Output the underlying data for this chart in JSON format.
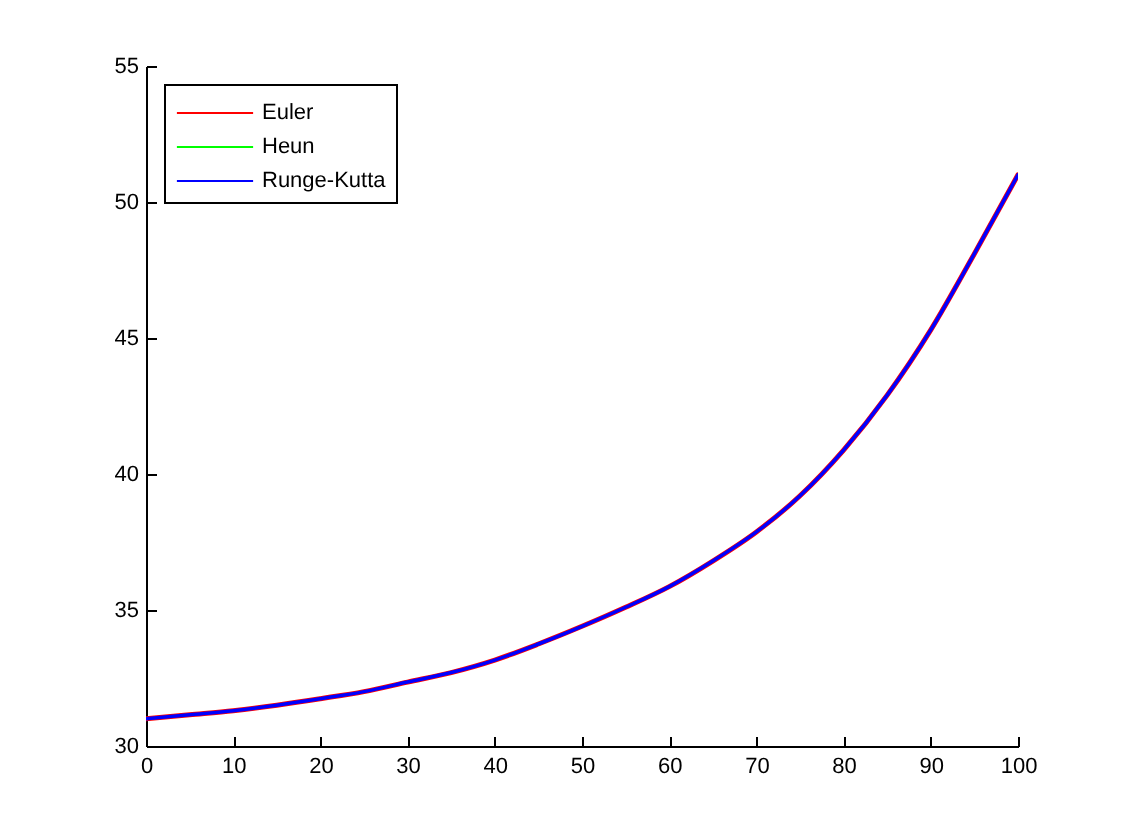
{
  "chart_data": {
    "type": "line",
    "x": [
      0,
      5,
      10,
      15,
      20,
      25,
      30,
      35,
      40,
      45,
      50,
      55,
      60,
      65,
      70,
      75,
      80,
      85,
      90,
      95,
      100
    ],
    "series": [
      {
        "name": "Euler",
        "color": "#ff0000",
        "values": [
          31.0,
          31.15,
          31.3,
          31.5,
          31.74,
          32.0,
          32.35,
          32.7,
          33.16,
          33.75,
          34.4,
          35.1,
          35.86,
          36.8,
          37.87,
          39.2,
          40.88,
          42.9,
          45.3,
          48.1,
          51.0
        ]
      },
      {
        "name": "Heun",
        "color": "#00ff00",
        "values": [
          null,
          null,
          null,
          null,
          null,
          null,
          null,
          null,
          null,
          null,
          null,
          null,
          null,
          null,
          null,
          null,
          null,
          null,
          null,
          null,
          null
        ]
      },
      {
        "name": "Runge-Kutta",
        "color": "#0000ff",
        "values": [
          31.0,
          31.15,
          31.3,
          31.5,
          31.74,
          32.0,
          32.35,
          32.7,
          33.16,
          33.75,
          34.4,
          35.1,
          35.86,
          36.8,
          37.87,
          39.2,
          40.88,
          42.9,
          45.3,
          48.1,
          51.0
        ]
      }
    ],
    "xlim": [
      0,
      100
    ],
    "xticks": [
      0,
      10,
      20,
      30,
      40,
      50,
      60,
      70,
      80,
      90,
      100
    ],
    "ylim": [
      30,
      55
    ],
    "yticks": [
      30,
      35,
      40,
      45,
      50,
      55
    ],
    "grid": false,
    "legend": "top left",
    "line_style": "solid"
  }
}
